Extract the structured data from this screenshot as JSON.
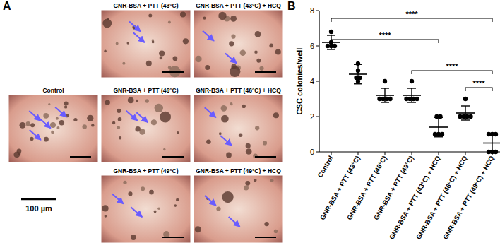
{
  "panel_a": {
    "label": "A",
    "images": [
      {
        "title": "Control"
      },
      {
        "title": "GNR-BSA + PTT (43°C)"
      },
      {
        "title": "GNR-BSA + PTT (43°C) + HCQ"
      },
      {
        "title": "GNR-BSA + PTT (46°C)"
      },
      {
        "title": "GNR-BSA + PTT (46°C) + HCQ"
      },
      {
        "title": "GNR-BSA + PTT (49°C)"
      },
      {
        "title": "GNR-BSA + PTT (49°C) + HCQ"
      }
    ],
    "scale_bar": "100 µm"
  },
  "chart_data": {
    "type": "dot",
    "panel_label": "B",
    "ylabel": "CSC colonies/well",
    "categories": [
      "Control",
      "GNR-BSA + PTT (43°C)",
      "GNR-BSA + PTT (46°C)",
      "GNR-BSA + PTT (49°C)",
      "GNR-BSA + PTT (43°C) + HCQ",
      "GNR-BSA + PTT (46°C) + HCQ",
      "GNR-BSA + PTT (49°C) + HCQ"
    ],
    "values": [
      6.2,
      4.4,
      3.2,
      3.2,
      1.4,
      2.2,
      0.5
    ],
    "errors": [
      0.4,
      0.55,
      0.4,
      0.4,
      0.55,
      0.4,
      0.55
    ],
    "points": [
      [
        6.8,
        6.2,
        6.0,
        6.0,
        6.0
      ],
      [
        5.0,
        4.6,
        4.2,
        4.2,
        4.0
      ],
      [
        4.0,
        3.0,
        3.0,
        3.0,
        3.0
      ],
      [
        4.0,
        3.0,
        3.0,
        3.0,
        3.0
      ],
      [
        2.0,
        2.0,
        1.0,
        1.0,
        1.0
      ],
      [
        3.0,
        2.0,
        2.0,
        2.0,
        2.0
      ],
      [
        1.0,
        1.0,
        1.0,
        0.0,
        0.0,
        0.0
      ]
    ],
    "color": "#000000",
    "ylim": [
      0,
      8
    ],
    "yticks": [
      0,
      2,
      4,
      6,
      8
    ],
    "comparisons": [
      {
        "from": 0,
        "to": 6,
        "label": "****"
      },
      {
        "from": 0,
        "to": 4,
        "label": "****"
      },
      {
        "from": 3,
        "to": 6,
        "label": "****"
      },
      {
        "from": 5,
        "to": 6,
        "label": "****"
      }
    ]
  }
}
